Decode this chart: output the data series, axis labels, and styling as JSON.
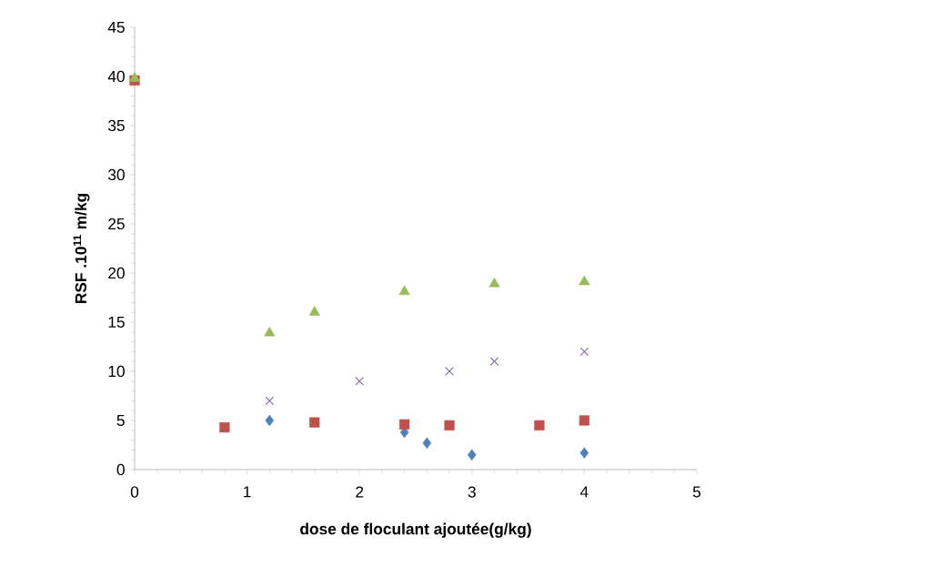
{
  "chart_data": {
    "type": "scatter",
    "xlabel": "dose de floculant ajoutée(g/kg)",
    "ylabel": "RSF .10$^{11}$ m/kg",
    "xlim": [
      0,
      5
    ],
    "ylim": [
      0,
      45
    ],
    "xticks": [
      0,
      1,
      2,
      3,
      4,
      5
    ],
    "yticks": [
      0,
      5,
      10,
      15,
      20,
      25,
      30,
      35,
      40,
      45
    ],
    "grid": false,
    "series": [
      {
        "color": "#4f81bd",
        "marker": "diamond",
        "x": [
          1.2,
          2.4,
          2.6,
          3,
          4
        ],
        "values": [
          5,
          3.8,
          2.7,
          1.5,
          1.7
        ]
      },
      {
        "color": "#c0504d",
        "marker": "square",
        "x": [
          0,
          0.8,
          1.6,
          2.4,
          2.8,
          3.6,
          4
        ],
        "values": [
          39.6,
          4.3,
          4.8,
          4.6,
          4.5,
          4.5,
          5
        ]
      },
      {
        "color": "#8064a2",
        "marker": "cross",
        "x": [
          1.2,
          2,
          2.8,
          3.2,
          4
        ],
        "values": [
          7,
          9,
          10,
          11,
          12
        ]
      },
      {
        "color": "#9bbb59",
        "marker": "triangle",
        "x": [
          0,
          1.2,
          1.6,
          2.4,
          3.2,
          4
        ],
        "values": [
          39.8,
          13.9,
          16,
          18.1,
          18.9,
          19.1
        ]
      }
    ]
  }
}
